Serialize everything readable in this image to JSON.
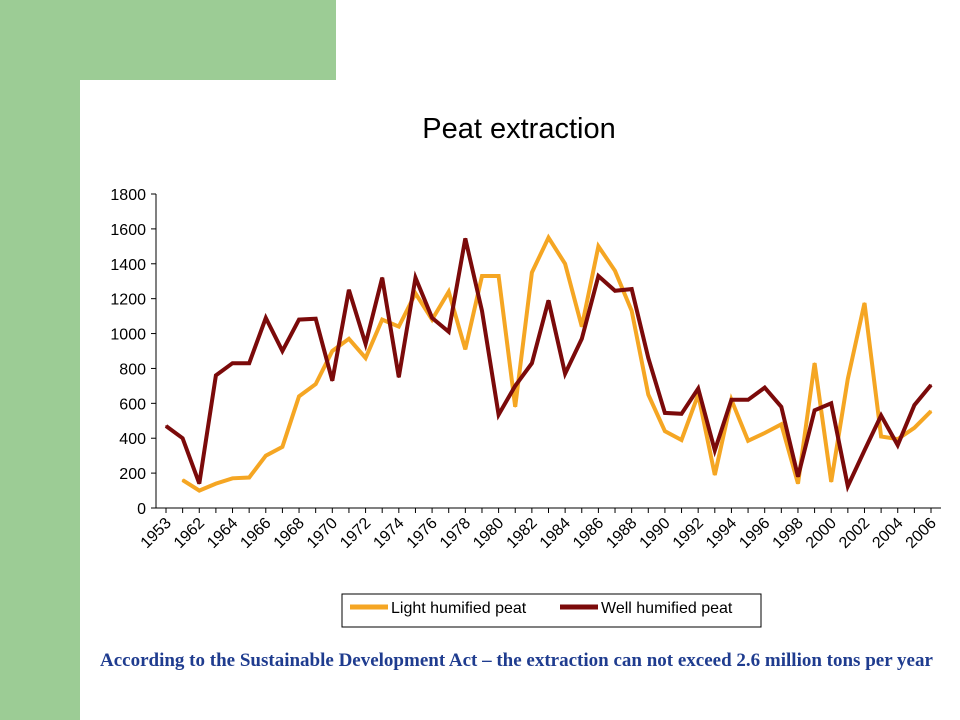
{
  "colors": {
    "background_accent": "#9ccc95",
    "footnote_text": "#1f3c8f"
  },
  "footnote": "According to the Sustainable Development Act – the extraction can not exceed 2.6 million tons per year",
  "chart_data": {
    "type": "line",
    "title": "Peat extraction",
    "xlabel": "",
    "ylabel": "",
    "ylim": [
      0,
      1800
    ],
    "yticks": [
      0,
      200,
      400,
      600,
      800,
      1000,
      1200,
      1400,
      1600,
      1800
    ],
    "grid": false,
    "legend_position": "bottom",
    "categories": [
      "1953",
      "1960",
      "1962",
      "1963",
      "1964",
      "1965",
      "1966",
      "1967",
      "1968",
      "1969",
      "1970",
      "1971",
      "1972",
      "1973",
      "1974",
      "1975",
      "1976",
      "1977",
      "1978",
      "1979",
      "1980",
      "1981",
      "1982",
      "1983",
      "1984",
      "1985",
      "1986",
      "1987",
      "1988",
      "1989",
      "1990",
      "1991",
      "1992",
      "1993",
      "1994",
      "1995",
      "1996",
      "1997",
      "1998",
      "1999",
      "2000",
      "2001",
      "2002",
      "2003",
      "2004",
      "2005",
      "2006"
    ],
    "xtick_labels": [
      "1953",
      "1962",
      "1964",
      "1966",
      "1968",
      "1970",
      "1972",
      "1974",
      "1976",
      "1978",
      "1980",
      "1982",
      "1984",
      "1986",
      "1988",
      "1990",
      "1992",
      "1994",
      "1996",
      "1998",
      "2000",
      "2002",
      "2004",
      "2006"
    ],
    "series": [
      {
        "name": "Light humified peat",
        "color": "#f5a623",
        "values": [
          null,
          160,
          100,
          140,
          170,
          175,
          300,
          350,
          640,
          710,
          900,
          970,
          860,
          1080,
          1040,
          1230,
          1080,
          1240,
          910,
          1330,
          1330,
          580,
          1350,
          1550,
          1400,
          1040,
          1500,
          1360,
          1130,
          650,
          440,
          390,
          650,
          190,
          620,
          385,
          430,
          480,
          140,
          830,
          150,
          740,
          1175,
          410,
          395,
          460,
          555
        ]
      },
      {
        "name": "Well humified peat",
        "color": "#7b0a0a",
        "values": [
          470,
          400,
          140,
          760,
          830,
          830,
          1090,
          900,
          1080,
          1085,
          730,
          1250,
          940,
          1320,
          750,
          1320,
          1090,
          1010,
          1545,
          1130,
          535,
          700,
          830,
          1190,
          770,
          970,
          1330,
          1245,
          1255,
          860,
          545,
          540,
          685,
          330,
          620,
          620,
          690,
          580,
          180,
          560,
          600,
          125,
          330,
          530,
          360,
          590,
          705
        ]
      }
    ]
  }
}
